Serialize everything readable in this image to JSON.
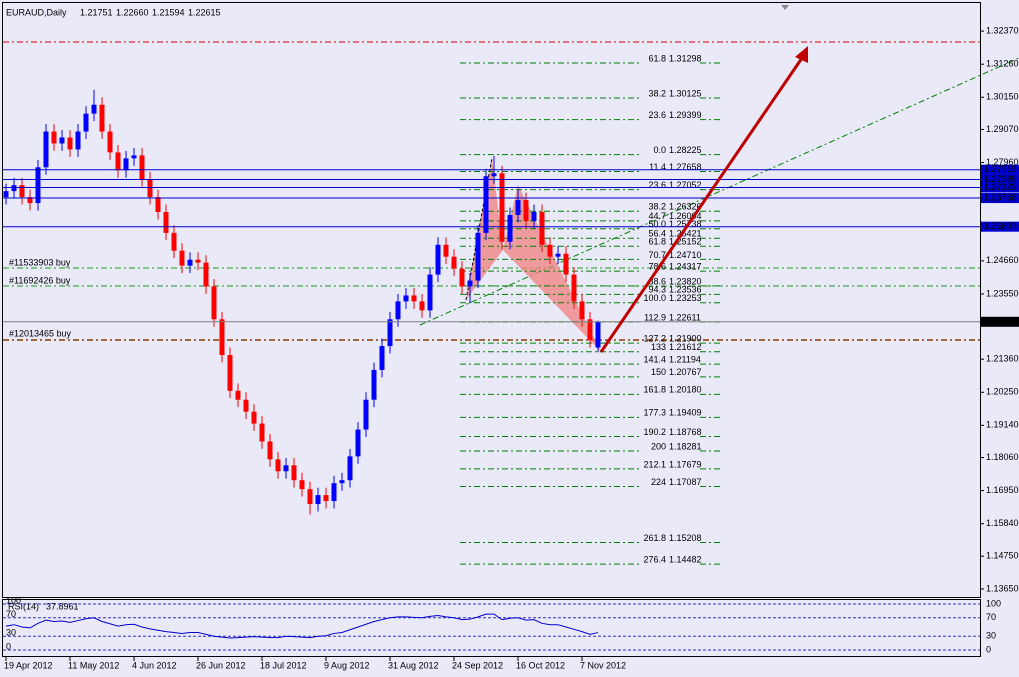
{
  "chart_data": {
    "type": "candlestick",
    "title": "EURAUD,Daily",
    "last_labels": [
      "1.21751",
      "1.22660",
      "1.21594",
      "1.22615"
    ],
    "categories": [
      "19 Apr 2012",
      null,
      null,
      null,
      null,
      null,
      null,
      null,
      "11 May 2012",
      null,
      null,
      null,
      null,
      null,
      null,
      null,
      "4 Jun 2012",
      null,
      null,
      null,
      null,
      null,
      null,
      null,
      "26 Jun 2012",
      null,
      null,
      null,
      null,
      null,
      null,
      null,
      "18 Jul 2012",
      null,
      null,
      null,
      null,
      null,
      null,
      null,
      "9 Aug 2012",
      null,
      null,
      null,
      null,
      null,
      null,
      null,
      "31 Aug 2012",
      null,
      null,
      null,
      null,
      null,
      null,
      null,
      "24 Sep 2012",
      null,
      null,
      null,
      null,
      null,
      null,
      null,
      "16 Oct 2012",
      null,
      null,
      null,
      null,
      null,
      null,
      null,
      "7 Nov 2012",
      null,
      null
    ],
    "ohlc": [
      [
        1.268,
        1.2725,
        1.2655,
        1.27
      ],
      [
        1.27,
        1.2745,
        1.2675,
        1.272
      ],
      [
        1.272,
        1.2745,
        1.2655,
        1.268
      ],
      [
        1.268,
        1.2705,
        1.2635,
        1.266
      ],
      [
        1.266,
        1.2805,
        1.2635,
        1.278
      ],
      [
        1.278,
        1.2925,
        1.2755,
        1.29
      ],
      [
        1.29,
        1.2925,
        1.2835,
        1.286
      ],
      [
        1.286,
        1.2905,
        1.2835,
        1.288
      ],
      [
        1.288,
        1.2905,
        1.2815,
        1.284
      ],
      [
        1.284,
        1.2925,
        1.2815,
        1.29
      ],
      [
        1.29,
        1.2985,
        1.2875,
        1.296
      ],
      [
        1.296,
        1.304,
        1.2935,
        1.299
      ],
      [
        1.299,
        1.3015,
        1.2875,
        1.29
      ],
      [
        1.29,
        1.2925,
        1.2805,
        1.283
      ],
      [
        1.283,
        1.2855,
        1.2745,
        1.277
      ],
      [
        1.277,
        1.2835,
        1.2745,
        1.281
      ],
      [
        1.281,
        1.2845,
        1.2785,
        1.282
      ],
      [
        1.282,
        1.2845,
        1.2715,
        1.274
      ],
      [
        1.274,
        1.2765,
        1.2655,
        1.268
      ],
      [
        1.268,
        1.2705,
        1.2605,
        1.263
      ],
      [
        1.263,
        1.2655,
        1.2535,
        1.256
      ],
      [
        1.256,
        1.2585,
        1.2475,
        1.25
      ],
      [
        1.25,
        1.2525,
        1.2425,
        1.245
      ],
      [
        1.245,
        1.2495,
        1.2425,
        1.247
      ],
      [
        1.247,
        1.2495,
        1.2435,
        1.246
      ],
      [
        1.246,
        1.2485,
        1.2355,
        1.238
      ],
      [
        1.238,
        1.2405,
        1.2245,
        1.227
      ],
      [
        1.227,
        1.2295,
        1.2125,
        1.215
      ],
      [
        1.215,
        1.2175,
        1.2005,
        1.203
      ],
      [
        1.203,
        1.2055,
        1.1975,
        1.2
      ],
      [
        1.2,
        1.2025,
        1.1935,
        1.196
      ],
      [
        1.196,
        1.1985,
        1.1895,
        1.192
      ],
      [
        1.192,
        1.1945,
        1.1835,
        1.186
      ],
      [
        1.186,
        1.1885,
        1.1775,
        1.18
      ],
      [
        1.18,
        1.1825,
        1.1735,
        1.176
      ],
      [
        1.176,
        1.1805,
        1.1735,
        1.178
      ],
      [
        1.178,
        1.1805,
        1.1705,
        1.173
      ],
      [
        1.173,
        1.1755,
        1.1675,
        1.17
      ],
      [
        1.17,
        1.1725,
        1.1615,
        1.165
      ],
      [
        1.165,
        1.1705,
        1.1625,
        1.168
      ],
      [
        1.168,
        1.1705,
        1.1635,
        1.166
      ],
      [
        1.166,
        1.1745,
        1.1635,
        1.172
      ],
      [
        1.172,
        1.1755,
        1.1695,
        1.173
      ],
      [
        1.173,
        1.1835,
        1.1705,
        1.181
      ],
      [
        1.181,
        1.1925,
        1.1785,
        1.19
      ],
      [
        1.19,
        1.2025,
        1.1875,
        1.2
      ],
      [
        1.2,
        1.2125,
        1.1975,
        1.21
      ],
      [
        1.21,
        1.2205,
        1.2075,
        1.218
      ],
      [
        1.218,
        1.2295,
        1.2155,
        1.227
      ],
      [
        1.227,
        1.2355,
        1.2245,
        1.233
      ],
      [
        1.233,
        1.2375,
        1.2305,
        1.235
      ],
      [
        1.235,
        1.2375,
        1.2305,
        1.233
      ],
      [
        1.233,
        1.2355,
        1.2275,
        1.23
      ],
      [
        1.23,
        1.2445,
        1.2275,
        1.242
      ],
      [
        1.242,
        1.2545,
        1.2395,
        1.252
      ],
      [
        1.252,
        1.2545,
        1.2455,
        1.248
      ],
      [
        1.248,
        1.2505,
        1.2415,
        1.244
      ],
      [
        1.244,
        1.2465,
        1.2355,
        1.238
      ],
      [
        1.238,
        1.2425,
        1.2325,
        1.24
      ],
      [
        1.24,
        1.2585,
        1.2375,
        1.256
      ],
      [
        1.256,
        1.2775,
        1.2535,
        1.275
      ],
      [
        1.275,
        1.2818,
        1.2725,
        1.276
      ],
      [
        1.276,
        1.2785,
        1.2505,
        1.253
      ],
      [
        1.253,
        1.2645,
        1.2505,
        1.262
      ],
      [
        1.262,
        1.2705,
        1.2595,
        1.267
      ],
      [
        1.267,
        1.2695,
        1.2575,
        1.26
      ],
      [
        1.26,
        1.2655,
        1.2575,
        1.263
      ],
      [
        1.263,
        1.2655,
        1.2495,
        1.252
      ],
      [
        1.252,
        1.2545,
        1.2455,
        1.248
      ],
      [
        1.248,
        1.2515,
        1.2455,
        1.249
      ],
      [
        1.249,
        1.2515,
        1.2395,
        1.242
      ],
      [
        1.242,
        1.2445,
        1.2305,
        1.233
      ],
      [
        1.233,
        1.2355,
        1.2245,
        1.227
      ],
      [
        1.227,
        1.2295,
        1.2175,
        1.22
      ],
      [
        1.21751,
        1.2266,
        1.21594,
        1.22615
      ]
    ],
    "bull_color": "#0000ff",
    "bear_color": "#ff0000",
    "ylim": [
      1.1338,
      1.3328
    ],
    "yticks": [
      {
        "value": 1.3237,
        "label": "1.32370"
      },
      {
        "value": 1.3126,
        "label": "1.31260"
      },
      {
        "value": 1.3015,
        "label": "1.30150"
      },
      {
        "value": 1.2907,
        "label": "1.29070"
      },
      {
        "value": 1.2796,
        "label": "1.27960"
      },
      {
        "value": 1.2466,
        "label": "1.24660"
      },
      {
        "value": 1.2355,
        "label": "1.23550"
      },
      {
        "value": 1.2136,
        "label": "1.21360"
      },
      {
        "value": 1.2025,
        "label": "1.20250"
      },
      {
        "value": 1.1914,
        "label": "1.19140"
      },
      {
        "value": 1.1806,
        "label": "1.18060"
      },
      {
        "value": 1.1695,
        "label": "1.16950"
      },
      {
        "value": 1.1584,
        "label": "1.15840"
      },
      {
        "value": 1.1475,
        "label": "1.14750"
      },
      {
        "value": 1.1365,
        "label": "1.13650"
      }
    ],
    "price_lines": [
      {
        "value": 1.27719,
        "color": "#0000cc"
      },
      {
        "value": 1.27389,
        "color": "#0000cc"
      },
      {
        "value": 1.27123,
        "color": "#0000cc"
      },
      {
        "value": 1.26768,
        "color": "#0000cc"
      },
      {
        "value": 1.25807,
        "color": "#0000cc"
      },
      {
        "value": 1.22615,
        "color": "#000000"
      }
    ],
    "orders": [
      "#11533903 buy",
      "#11692426 buy",
      "#12013465 buy"
    ],
    "fibs": [
      {
        "ratio": "61.8",
        "price": 1.31298
      },
      {
        "ratio": "38.2",
        "price": 1.30125
      },
      {
        "ratio": "23.6",
        "price": 1.29399
      },
      {
        "ratio": "0.0",
        "price": 1.28225
      },
      {
        "ratio": "11.4",
        "price": 1.27658
      },
      {
        "ratio": "23.6",
        "price": 1.27052
      },
      {
        "ratio": "38.2",
        "price": 1.26326
      },
      {
        "ratio": "44.7",
        "price": 1.26004
      },
      {
        "ratio": "50.0",
        "price": 1.25738
      },
      {
        "ratio": "56.4",
        "price": 1.25421
      },
      {
        "ratio": "61.8",
        "price": 1.25152
      },
      {
        "ratio": "70.7",
        "price": {
          "value": 1.2471,
          "label": "1.24710"
        }
      },
      {
        "ratio": "78.6",
        "price": 1.24317
      },
      {
        "ratio": "88.6",
        "price": {
          "value": 1.2382,
          "label": "1.23820"
        }
      },
      {
        "ratio": "94.3",
        "price": 1.23536
      },
      {
        "ratio": "100.0",
        "price": 1.23253
      },
      {
        "ratio": "112.9",
        "price": 1.22611
      },
      {
        "ratio": "127.2",
        "price": {
          "value": 1.219,
          "label": "1.21900"
        }
      },
      {
        "ratio": "133",
        "price": 1.21612
      },
      {
        "ratio": "141.4",
        "price": 1.21194
      },
      {
        "ratio": "150",
        "price": 1.20767
      },
      {
        "ratio": "161.8",
        "price": {
          "value": 1.2018,
          "label": "1.20180"
        }
      },
      {
        "ratio": "177.3",
        "price": 1.19409
      },
      {
        "ratio": "190.2",
        "price": 1.18768
      },
      {
        "ratio": "200",
        "price": 1.18281
      },
      {
        "ratio": "212.1",
        "price": 1.17679
      },
      {
        "ratio": "224",
        "price": 1.17087
      },
      {
        "ratio": "261.8",
        "price": 1.15208
      },
      {
        "ratio": "276.4",
        "price": 1.14482
      }
    ],
    "rsi": {
      "name": "RSI(14)",
      "color": "#0000cc",
      "ylim": [
        0,
        100
      ],
      "yticks": [
        0,
        30,
        70,
        100
      ],
      "values": [
        52,
        55,
        50,
        48,
        58,
        65,
        62,
        63,
        60,
        64,
        68,
        70,
        62,
        57,
        52,
        55,
        56,
        50,
        46,
        43,
        40,
        38,
        36,
        38,
        38,
        34,
        30,
        28,
        26,
        27,
        28,
        29,
        28,
        27,
        27,
        30,
        29,
        28,
        27,
        30,
        31,
        36,
        38,
        44,
        50,
        56,
        62,
        66,
        70,
        72,
        72,
        71,
        70,
        73,
        75,
        72,
        70,
        66,
        67,
        72,
        78,
        78,
        66,
        69,
        70,
        65,
        66,
        58,
        55,
        55,
        50,
        45,
        40,
        34,
        37.8961
      ]
    }
  }
}
